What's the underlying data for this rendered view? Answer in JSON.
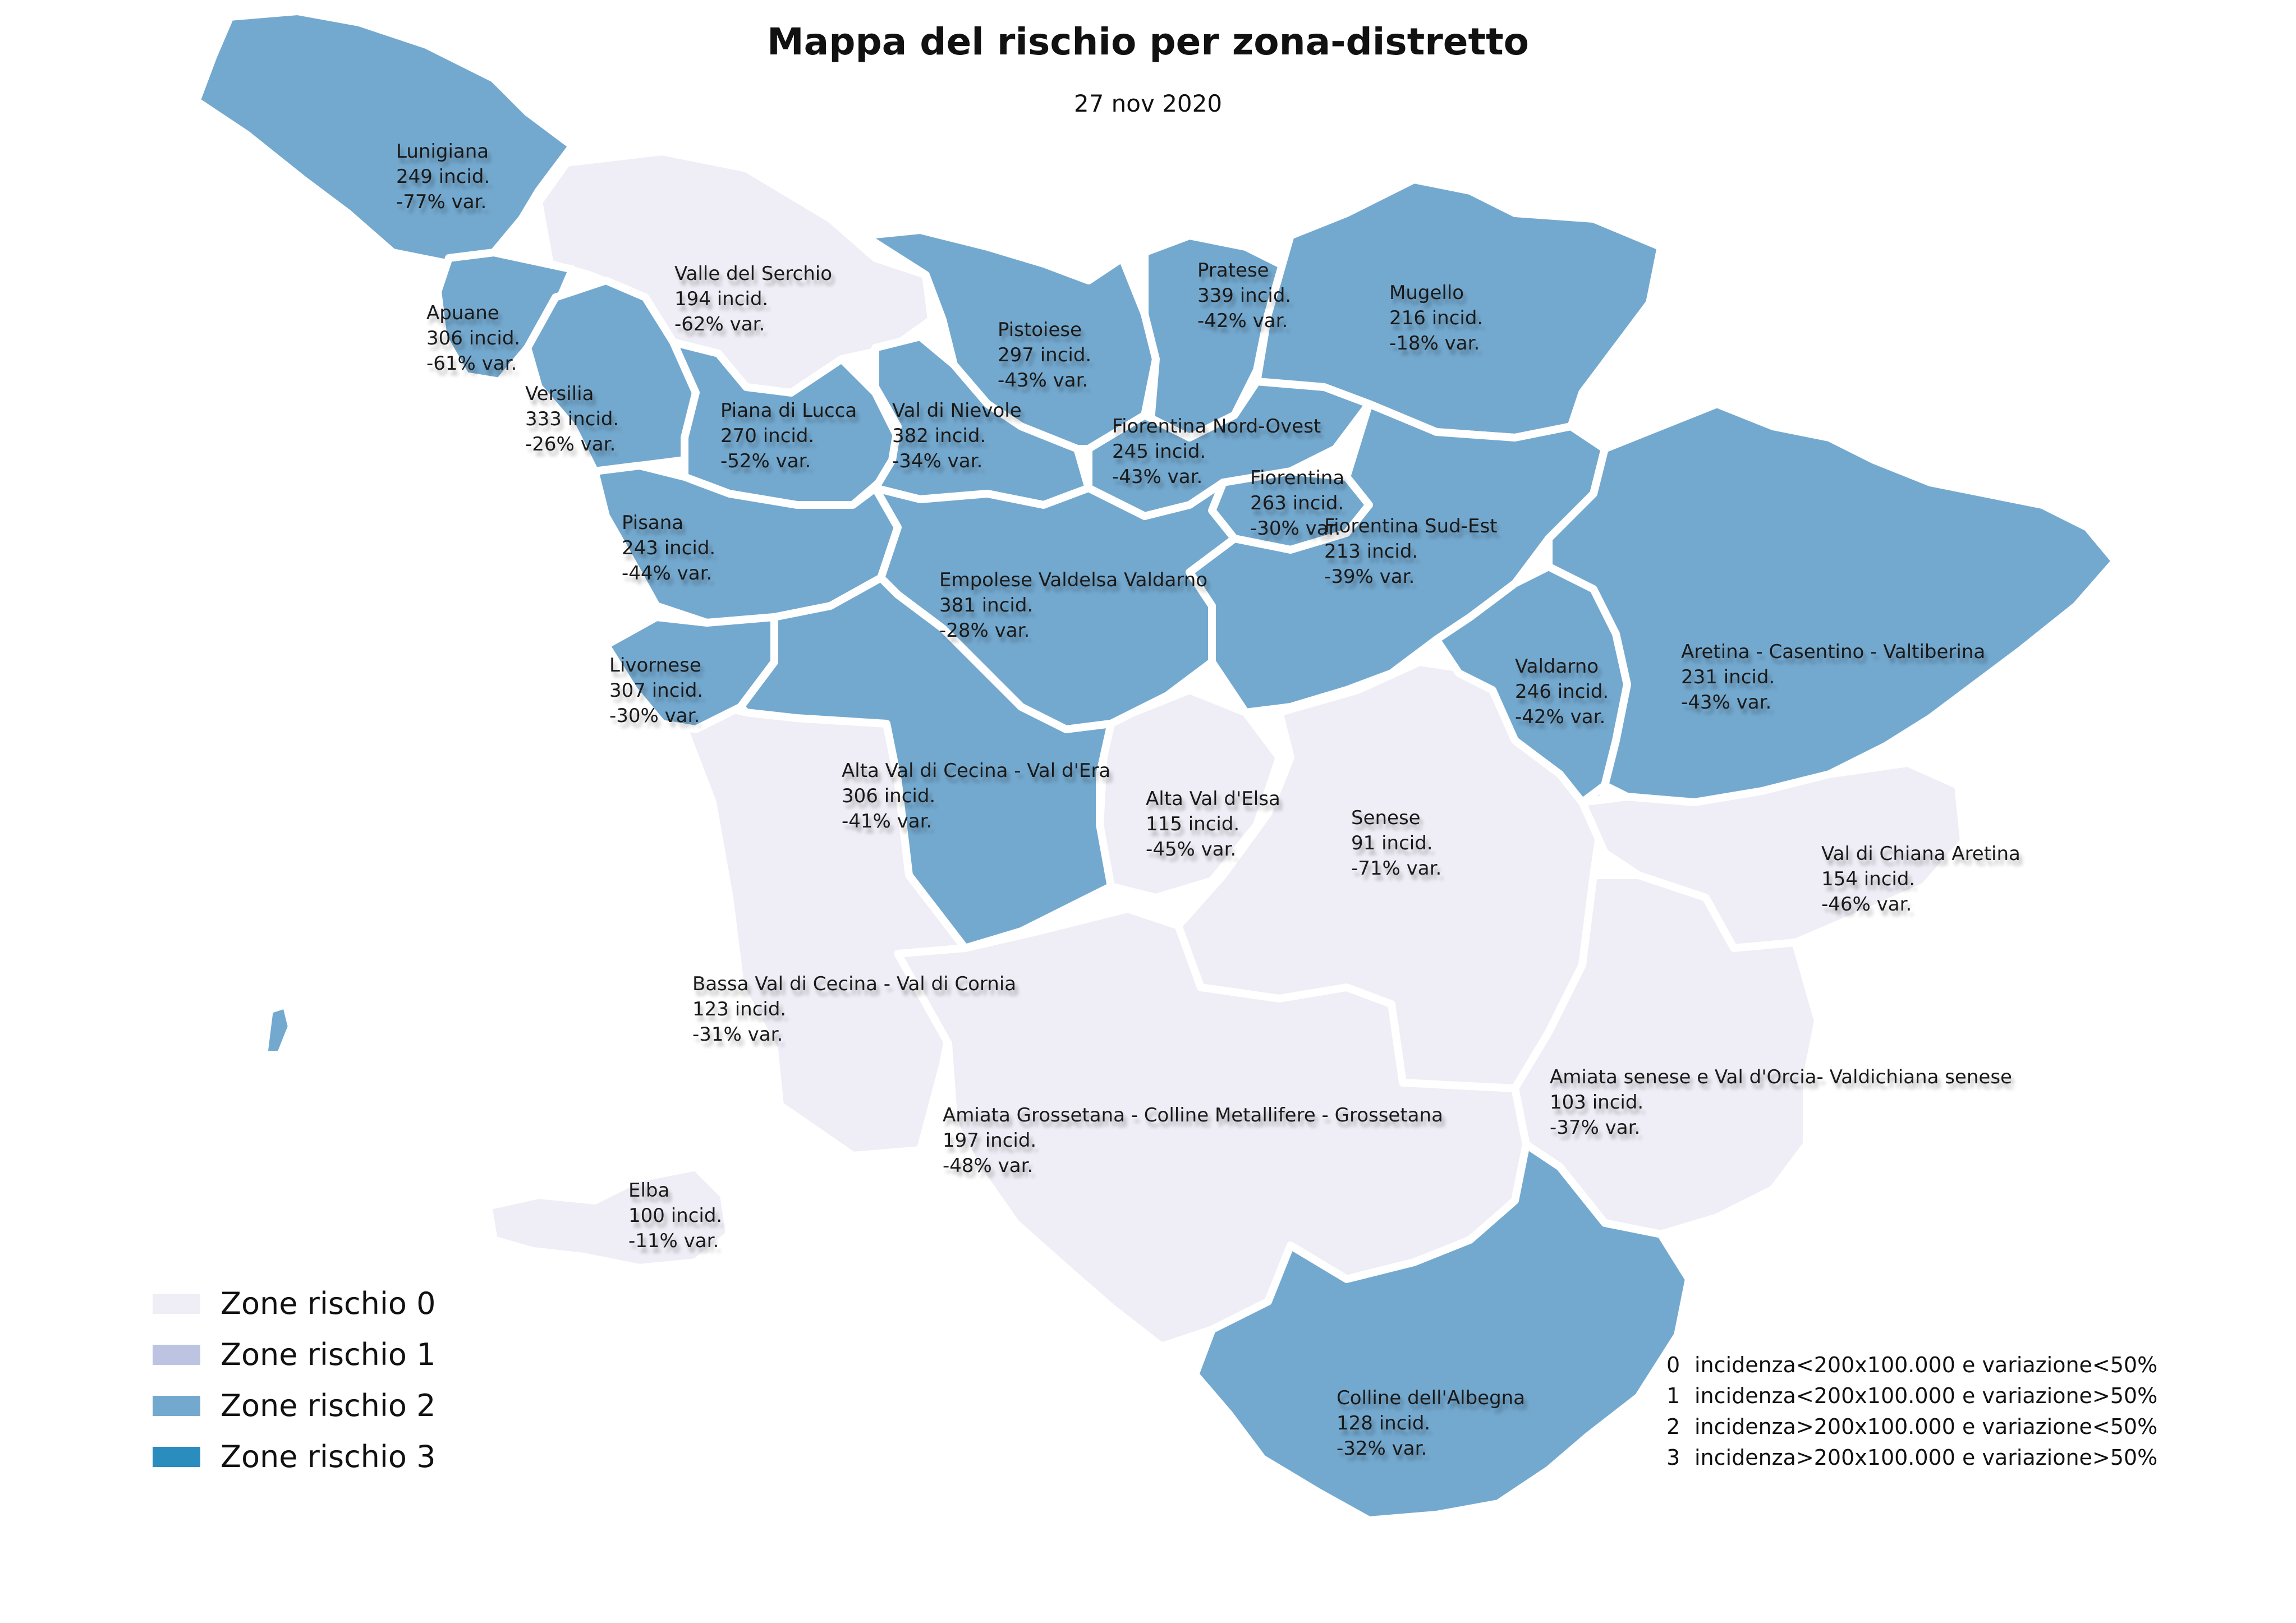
{
  "title": "Mappa del rischio per zona-distretto",
  "subtitle": "27 nov 2020",
  "colors": {
    "risk0": "#efedf5",
    "risk1": "#bcc4e2",
    "risk2": "#74a9cf",
    "risk3": "#2b8cbe"
  },
  "zones": [
    {
      "name": "Lunigiana",
      "incid": "249 incid.",
      "var": "-77% var.",
      "risk": 2
    },
    {
      "name": "Apuane",
      "incid": "306 incid.",
      "var": "-61% var.",
      "risk": 2
    },
    {
      "name": "Versilia",
      "incid": "333 incid.",
      "var": "-26% var.",
      "risk": 2
    },
    {
      "name": "Valle del Serchio",
      "incid": "194 incid.",
      "var": "-62% var.",
      "risk": 0
    },
    {
      "name": "Piana di Lucca",
      "incid": "270 incid.",
      "var": "-52% var.",
      "risk": 2
    },
    {
      "name": "Val di Nievole",
      "incid": "382 incid.",
      "var": "-34% var.",
      "risk": 2
    },
    {
      "name": "Pistoiese",
      "incid": "297 incid.",
      "var": "-43% var.",
      "risk": 2
    },
    {
      "name": "Pratese",
      "incid": "339 incid.",
      "var": "-42% var.",
      "risk": 2
    },
    {
      "name": "Mugello",
      "incid": "216 incid.",
      "var": "-18% var.",
      "risk": 2
    },
    {
      "name": "Fiorentina Nord-Ovest",
      "incid": "245 incid.",
      "var": "-43% var.",
      "risk": 2
    },
    {
      "name": "Fiorentina",
      "incid": "263 incid.",
      "var": "-30% var.",
      "risk": 2
    },
    {
      "name": "Fiorentina Sud-Est",
      "incid": "213 incid.",
      "var": "-39% var.",
      "risk": 2
    },
    {
      "name": "Pisana",
      "incid": "243 incid.",
      "var": "-44% var.",
      "risk": 2
    },
    {
      "name": "Empolese Valdelsa Valdarno",
      "incid": "381 incid.",
      "var": "-28% var.",
      "risk": 2
    },
    {
      "name": "Livornese",
      "incid": "307 incid.",
      "var": "-30% var.",
      "risk": 2
    },
    {
      "name": "Valdarno",
      "incid": "246 incid.",
      "var": "-42% var.",
      "risk": 2
    },
    {
      "name": "Aretina - Casentino - Valtiberina",
      "incid": "231 incid.",
      "var": "-43% var.",
      "risk": 2
    },
    {
      "name": "Alta Val di Cecina - Val d'Era",
      "incid": "306 incid.",
      "var": "-41% var.",
      "risk": 2
    },
    {
      "name": "Alta Val d'Elsa",
      "incid": "115 incid.",
      "var": "-45% var.",
      "risk": 0
    },
    {
      "name": "Senese",
      "incid": "91 incid.",
      "var": "-71% var.",
      "risk": 0
    },
    {
      "name": "Val di Chiana Aretina",
      "incid": "154 incid.",
      "var": "-46% var.",
      "risk": 0
    },
    {
      "name": "Bassa Val di Cecina - Val di Cornia",
      "incid": "123 incid.",
      "var": "-31% var.",
      "risk": 0
    },
    {
      "name": "Amiata senese e Val d'Orcia- Valdichiana senese",
      "incid": "103 incid.",
      "var": "-37% var.",
      "risk": 0
    },
    {
      "name": "Amiata Grossetana - Colline Metallifere - Grossetana",
      "incid": "197 incid.",
      "var": "-48% var.",
      "risk": 0
    },
    {
      "name": "Elba",
      "incid": "100 incid.",
      "var": "-11% var.",
      "risk": 0
    },
    {
      "name": "Colline dell'Albegna",
      "incid": "128 incid.",
      "var": "-32% var.",
      "risk": 0
    }
  ],
  "legend": [
    {
      "label": "Zone rischio 0",
      "color": "#efedf5"
    },
    {
      "label": "Zone rischio 1",
      "color": "#bcc4e2"
    },
    {
      "label": "Zone rischio 2",
      "color": "#74a9cf"
    },
    {
      "label": "Zone rischio 3",
      "color": "#2b8cbe"
    }
  ],
  "criteria": [
    {
      "level": "0",
      "text": "incidenza<200x100.000 e variazione<50%"
    },
    {
      "level": "1",
      "text": "incidenza<200x100.000 e variazione>50%"
    },
    {
      "level": "2",
      "text": "incidenza>200x100.000 e variazione<50%"
    },
    {
      "level": "3",
      "text": "incidenza>200x100.000 e variazione>50%"
    }
  ]
}
